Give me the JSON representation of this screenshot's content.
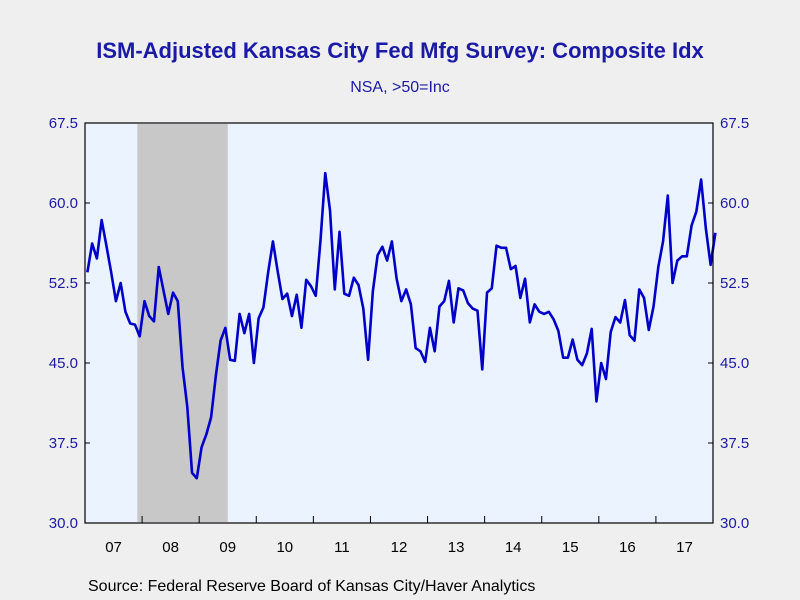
{
  "chart_data": {
    "type": "line",
    "title": "ISM-Adjusted Kansas City Fed Mfg Survey: Composite Idx",
    "subtitle": "NSA, >50=Inc",
    "source": "Source:  Federal Reserve Board of Kansas City/Haver Analytics",
    "ylim": [
      30.0,
      67.5
    ],
    "yticks": [
      "30.0",
      "37.5",
      "45.0",
      "52.5",
      "60.0",
      "67.5"
    ],
    "x_start": "2007-01",
    "x_end": "2017-12",
    "year_labels": [
      "07",
      "08",
      "09",
      "10",
      "11",
      "12",
      "13",
      "14",
      "15",
      "16",
      "17"
    ],
    "recession": {
      "start": "2007-12",
      "end": "2009-06"
    },
    "colors": {
      "line": "#0000c8",
      "plot_bg": "#eaf3ff",
      "recession": "#c8c8c8",
      "text": "#1a1aa6"
    },
    "grid": false,
    "series": [
      {
        "start": "2007-01",
        "values": [
          53.5,
          56.2,
          54.8,
          58.4,
          56.0,
          53.5,
          50.8,
          52.5,
          49.8,
          48.7,
          48.6,
          47.5,
          50.8,
          49.4,
          48.9,
          54.0,
          51.8,
          49.6,
          51.6,
          50.8,
          44.6,
          40.9,
          34.7,
          34.2,
          37.1,
          38.3,
          39.9,
          43.8,
          47.1,
          48.3,
          45.3,
          45.2,
          49.6,
          47.8,
          49.6,
          45.0,
          49.2,
          50.2,
          53.5,
          56.4,
          53.6,
          51.0,
          51.5,
          49.4,
          51.4,
          48.3,
          52.8,
          52.2,
          51.3,
          56.5,
          62.8,
          59.3,
          51.9,
          57.3,
          51.5,
          51.3,
          53.0,
          52.3,
          50.1,
          45.3,
          51.7,
          55.1,
          55.9,
          54.6,
          56.4,
          52.9,
          50.8,
          51.9,
          50.5,
          46.4,
          46.1,
          45.1,
          48.3,
          46.1,
          50.3,
          50.8,
          52.7,
          48.8,
          52.0,
          51.8,
          50.6,
          50.1,
          49.9,
          44.4,
          51.6,
          52.0,
          56.0,
          55.8,
          55.8,
          53.8,
          54.1,
          51.1,
          52.9,
          48.8,
          50.5,
          49.8,
          49.6,
          49.8,
          49.1,
          48.0,
          45.5,
          45.5,
          47.2,
          45.3,
          44.8,
          45.9,
          48.2,
          41.4,
          45.0,
          43.5,
          47.9,
          49.3,
          48.8,
          50.9,
          47.6,
          47.1,
          51.9,
          51.1,
          48.1,
          50.3,
          54.0,
          56.4,
          60.7,
          52.5,
          54.6,
          55.0,
          55.0,
          57.9,
          59.2,
          62.2,
          57.6,
          54.2,
          57.2
        ]
      }
    ]
  }
}
